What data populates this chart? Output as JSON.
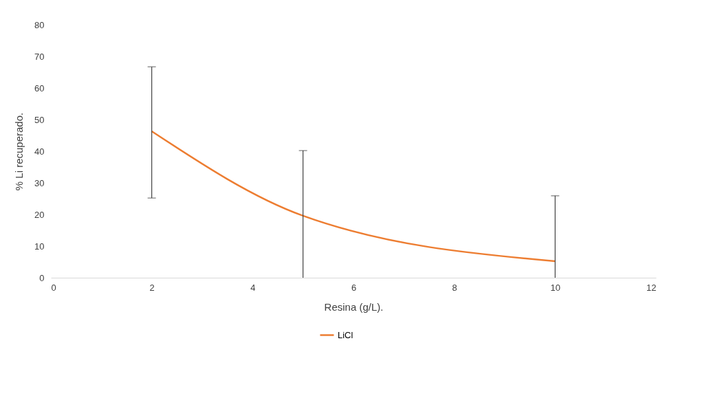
{
  "chart_data": {
    "type": "line",
    "xlabel": "Resina (g/L).",
    "ylabel": "% Li recuperado.",
    "x": [
      2,
      5,
      10
    ],
    "series": [
      {
        "name": "LiCl",
        "color": "#ed7d31",
        "values": [
          46.3,
          19.6,
          5.2
        ],
        "errors": [
          [
            25.2,
            66.7
          ],
          [
            0,
            40.2
          ],
          [
            0,
            25.9
          ]
        ]
      }
    ],
    "xlim": [
      0,
      12
    ],
    "xticks": [
      0,
      2,
      4,
      6,
      8,
      10,
      12
    ],
    "ylim": [
      0,
      80
    ],
    "yticks": [
      0,
      10,
      20,
      30,
      40,
      50,
      60,
      70,
      80
    ],
    "grid": false,
    "legend": "bottom",
    "marker": "none",
    "line_style": "solid"
  }
}
